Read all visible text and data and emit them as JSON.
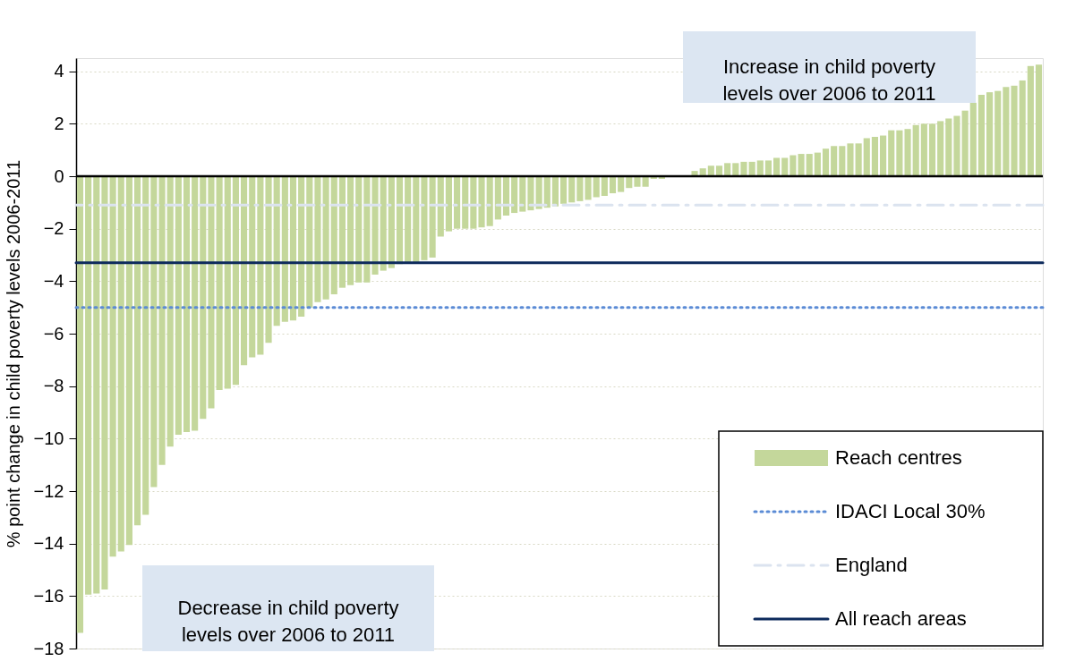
{
  "chart_data": {
    "type": "bar",
    "ylabel": "% point change in child poverty levels 2006-2011",
    "categories": [
      null,
      null,
      null,
      null,
      null,
      null,
      null,
      null,
      null,
      null,
      null,
      null,
      null,
      null,
      null,
      null,
      null,
      null,
      null,
      null,
      null,
      null,
      null,
      null,
      null,
      null,
      null,
      null,
      null,
      null,
      null,
      null,
      null,
      null,
      null,
      null,
      null,
      null,
      null,
      null,
      null,
      null,
      null,
      null,
      null,
      null,
      null,
      null,
      null,
      null,
      null,
      null,
      null,
      null,
      null,
      null,
      null,
      null,
      null,
      null,
      null,
      null,
      null,
      null,
      null,
      null,
      null,
      null,
      null,
      null,
      null,
      null,
      null,
      null,
      null,
      null,
      null,
      null,
      null,
      null,
      null,
      null,
      null,
      null,
      null,
      null,
      null,
      null,
      null,
      null,
      null,
      null,
      null,
      null,
      null,
      null,
      null,
      null,
      null,
      null,
      null,
      null,
      null,
      null,
      null,
      null,
      null,
      null,
      null,
      null,
      null,
      null,
      null,
      null,
      null,
      null,
      null,
      null
    ],
    "series": [
      {
        "name": "Reach centres",
        "color": "#c4d79b",
        "values": [
          -17.4,
          -15.95,
          -15.9,
          -15.75,
          -14.5,
          -14.3,
          -14.05,
          -13.3,
          -12.9,
          -11.85,
          -11.0,
          -10.3,
          -9.85,
          -9.75,
          -9.7,
          -9.25,
          -8.85,
          -8.15,
          -8.1,
          -7.95,
          -7.2,
          -6.9,
          -6.8,
          -6.35,
          -5.7,
          -5.55,
          -5.5,
          -5.35,
          -5.0,
          -4.8,
          -4.7,
          -4.5,
          -4.25,
          -4.15,
          -4.05,
          -4.05,
          -3.75,
          -3.6,
          -3.5,
          -3.35,
          -3.3,
          -3.3,
          -3.2,
          -3.1,
          -2.3,
          -2.1,
          -2.0,
          -2.0,
          -2.0,
          -1.95,
          -1.9,
          -1.65,
          -1.5,
          -1.4,
          -1.35,
          -1.3,
          -1.25,
          -1.2,
          -1.15,
          -1.05,
          -1.0,
          -0.95,
          -0.9,
          -0.8,
          -0.75,
          -0.65,
          -0.6,
          -0.45,
          -0.4,
          -0.4,
          -0.1,
          -0.1,
          0,
          0,
          0,
          0.2,
          0.3,
          0.4,
          0.4,
          0.5,
          0.5,
          0.55,
          0.55,
          0.6,
          0.6,
          0.7,
          0.7,
          0.8,
          0.85,
          0.85,
          0.9,
          1.05,
          1.15,
          1.15,
          1.25,
          1.25,
          1.45,
          1.5,
          1.55,
          1.75,
          1.75,
          1.8,
          1.95,
          2.0,
          2.0,
          2.1,
          2.2,
          2.3,
          2.5,
          2.8,
          3.1,
          3.2,
          3.25,
          3.4,
          3.45,
          3.65,
          4.2,
          4.25
        ]
      }
    ],
    "ylim": [
      -18,
      4.5
    ],
    "yticks": [
      -18,
      -16,
      -14,
      -12,
      -10,
      -8,
      -6,
      -4,
      -2,
      0,
      2,
      4
    ],
    "grid": "y",
    "tick_labels": "y",
    "legend": "bottom right",
    "ref_lines": [
      {
        "axis": "y",
        "value": -5.0,
        "label": "IDACI Local 30%",
        "color": "#5b8bd5",
        "line_style": "dotted"
      },
      {
        "axis": "y",
        "value": -1.1,
        "label": "England",
        "color": "#dbe3ef",
        "line_style": "dashed"
      },
      {
        "axis": "y",
        "value": -3.3,
        "label": "All reach areas",
        "color": "#0d2a5c",
        "line_style": "solid"
      }
    ],
    "annotations": [
      "Increase in child poverty\nlevels over 2006 to 2011",
      "Decrease in child poverty\nlevels over 2006 to 2011"
    ]
  }
}
